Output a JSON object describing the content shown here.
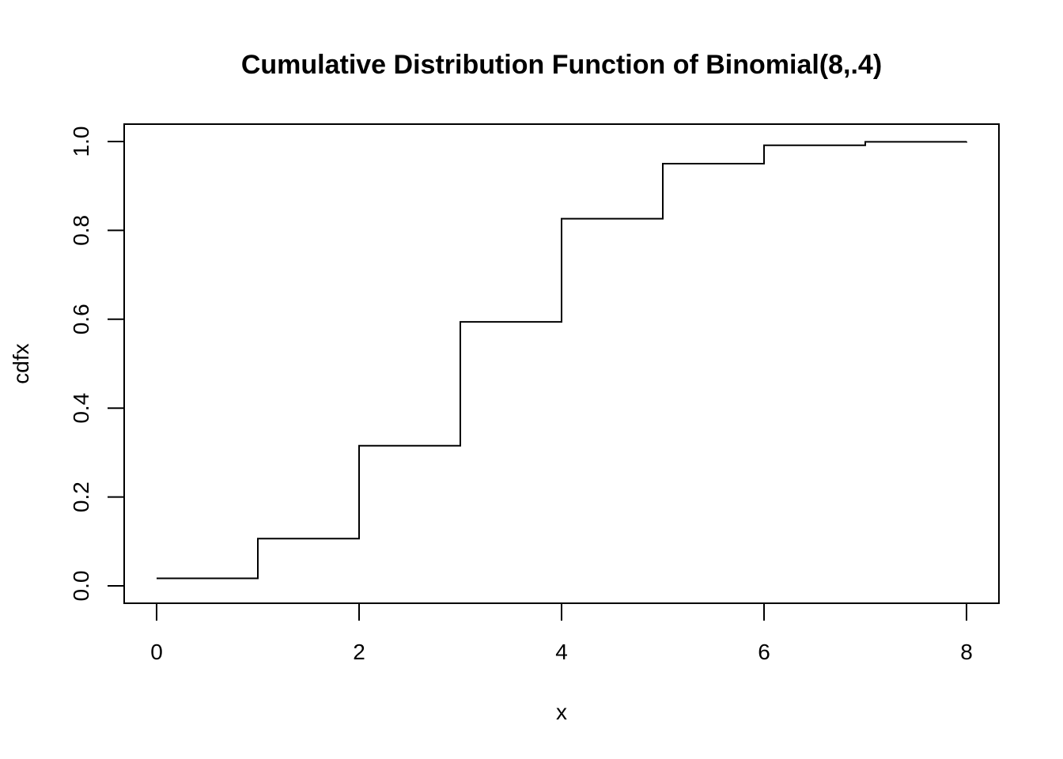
{
  "chart_data": {
    "type": "line",
    "style": "step",
    "title": "Cumulative Distribution Function of Binomial(8,.4)",
    "xlabel": "x",
    "ylabel": "cdfx",
    "xlim": [
      0,
      8
    ],
    "ylim": [
      0,
      1
    ],
    "x_ticks": [
      0,
      2,
      4,
      6,
      8
    ],
    "x_tick_labels": [
      "0",
      "2",
      "4",
      "6",
      "8"
    ],
    "y_ticks": [
      0,
      0.2,
      0.4,
      0.6,
      0.8,
      1.0
    ],
    "y_tick_labels": [
      "0.0",
      "0.2",
      "0.4",
      "0.6",
      "0.8",
      "1.0"
    ],
    "grid": false,
    "series": [
      {
        "x": [
          0,
          1,
          2,
          3,
          4,
          5,
          6,
          7,
          8
        ],
        "y": [
          0.0168,
          0.1064,
          0.3154,
          0.5941,
          0.8263,
          0.9502,
          0.9915,
          0.9993,
          1.0
        ],
        "color": "#000000"
      }
    ]
  }
}
